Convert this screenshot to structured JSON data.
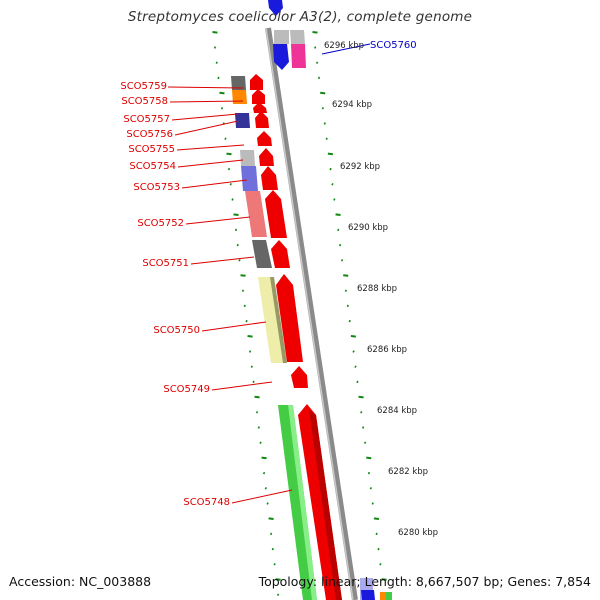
{
  "title": "Streptomyces coelicolor A3(2), complete genome",
  "footer": {
    "accession": "Accession: NC_003888",
    "summary": "Topology: linear; Length: 8,667,507 bp; Genes: 7,854"
  },
  "colors": {
    "forward_gene": "#ee0000",
    "reverse_gene": "#1a1adc",
    "label_red": "#dd0000",
    "label_blue": "#0000cc",
    "tick_green": "#118811",
    "backbone": "#888888"
  },
  "scale_labels": [
    "6296 kbp",
    "6294 kbp",
    "6292 kbp",
    "6290 kbp",
    "6288 kbp",
    "6286 kbp",
    "6284 kbp",
    "6282 kbp",
    "6280 kbp"
  ],
  "gene_labels": [
    "SCO5759",
    "SCO5758",
    "SCO5757",
    "SCO5756",
    "SCO5755",
    "SCO5754",
    "SCO5753",
    "SCO5752",
    "SCO5751",
    "SCO5750",
    "SCO5749",
    "SCO5748",
    "SCO5760"
  ]
}
